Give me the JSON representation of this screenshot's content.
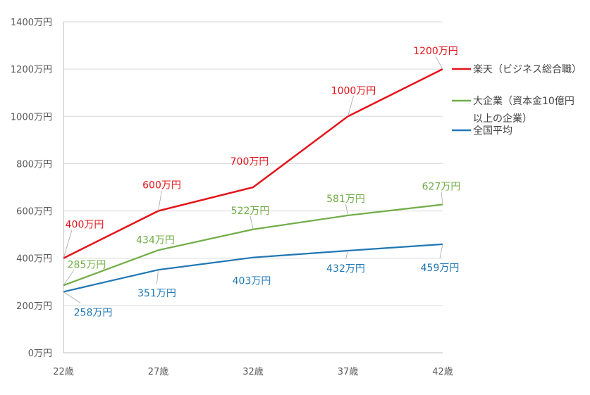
{
  "chart_data": {
    "type": "line",
    "title": "",
    "xlabel": "",
    "ylabel": "",
    "x": [
      "22歳",
      "27歳",
      "32歳",
      "37歳",
      "42歳"
    ],
    "ylim": [
      0,
      1400
    ],
    "yticks": [
      {
        "value": 0,
        "label": "0万円"
      },
      {
        "value": 200,
        "label": "200万円"
      },
      {
        "value": 400,
        "label": "400万円"
      },
      {
        "value": 600,
        "label": "600万円"
      },
      {
        "value": 800,
        "label": "800万円"
      },
      {
        "value": 1000,
        "label": "1000万円"
      },
      {
        "value": 1200,
        "label": "1200万円"
      },
      {
        "value": 1400,
        "label": "1400万円"
      }
    ],
    "grid": true,
    "legend_position": "right",
    "series": [
      {
        "name": "楽天（ビジネス総合職）",
        "color": "#e3141b",
        "values": [
          400,
          600,
          700,
          1000,
          1200
        ],
        "labels": [
          "400万円",
          "600万円",
          "700万円",
          "1000万円",
          "1200万円"
        ]
      },
      {
        "name": "大企業（資本金10億円以上の企業）",
        "color": "#70ad47",
        "values": [
          285,
          434,
          522,
          581,
          627
        ],
        "labels": [
          "285万円",
          "434万円",
          "522万円",
          "581万円",
          "627万円"
        ]
      },
      {
        "name": "全国平均",
        "color": "#1f77b4",
        "values": [
          258,
          351,
          403,
          432,
          459
        ],
        "labels": [
          "258万円",
          "351万円",
          "403万円",
          "432万円",
          "459万円"
        ]
      }
    ]
  }
}
